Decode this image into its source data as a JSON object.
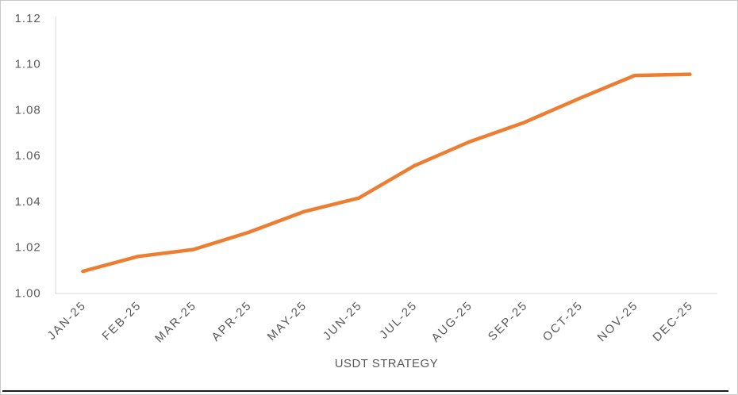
{
  "colors": {
    "line": "#ED7D31",
    "axis_line": "#D9D9D9",
    "tick_text": "#595959",
    "axis_title_text": "#595959",
    "background": "#FFFFFF",
    "outer_border": "#C9C9C9",
    "bottom_rule": "#1C1C1C"
  },
  "chart_data": {
    "type": "line",
    "title": "",
    "xlabel": "USDT STRATEGY",
    "ylabel": "",
    "categories": [
      "JAN-25",
      "FEB-25",
      "MAR-25",
      "APR-25",
      "MAY-25",
      "JUN-25",
      "JUL-25",
      "AUG-25",
      "SEP-25",
      "OCT-25",
      "NOV-25",
      "DEC-25"
    ],
    "series": [
      {
        "name": "USDT STRATEGY",
        "values": [
          1.0095,
          1.016,
          1.019,
          1.0265,
          1.0355,
          1.0415,
          1.0555,
          1.066,
          1.0745,
          1.085,
          1.095,
          1.0955
        ]
      }
    ],
    "ylim": [
      1.0,
      1.12
    ],
    "ytick_step": 0.02,
    "yticks": [
      "1.00",
      "1.02",
      "1.04",
      "1.06",
      "1.08",
      "1.10",
      "1.12"
    ],
    "grid": false,
    "legend_position": "none",
    "line_width": 4.5
  }
}
